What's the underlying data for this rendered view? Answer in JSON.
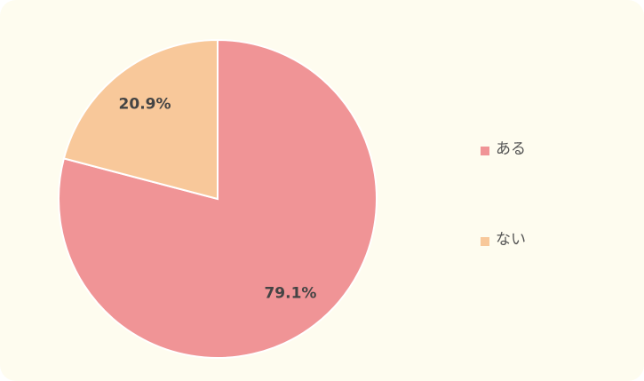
{
  "chart_data": {
    "type": "pie",
    "categories": [
      "ある",
      "ない"
    ],
    "values": [
      79.1,
      20.9
    ],
    "value_labels": [
      "79.1%",
      "20.9%"
    ],
    "colors": [
      "#f09496",
      "#f8c89a"
    ],
    "legend": "right"
  }
}
